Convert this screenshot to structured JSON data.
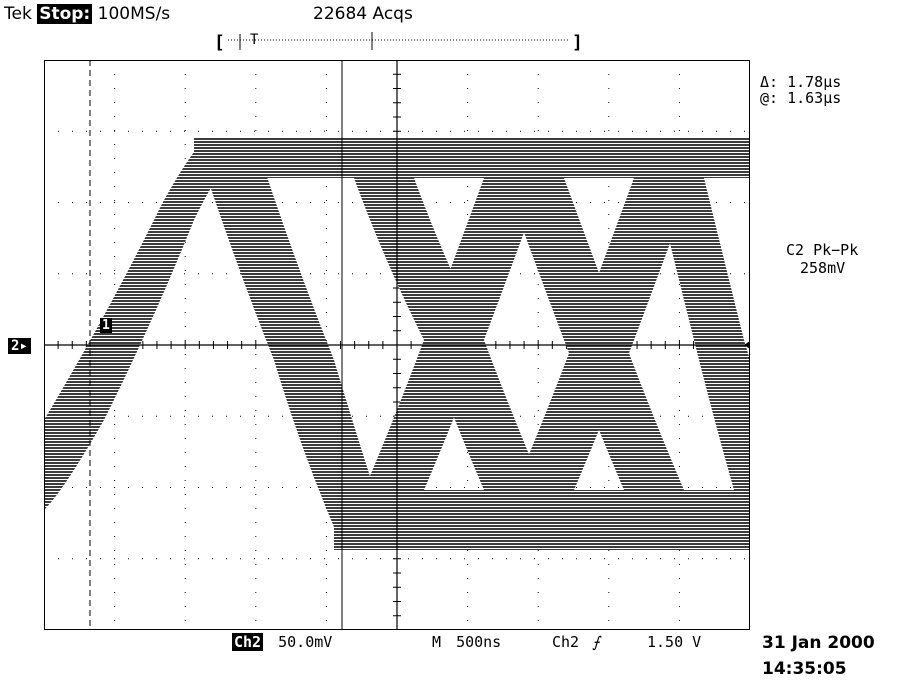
{
  "header": {
    "brand": "Tek",
    "run_state": "Stop:",
    "sample_rate": "100MS/s",
    "acquisitions": "22684 Acqs",
    "trigger_marker": "T"
  },
  "readouts": {
    "delta": "Δ: 1.78μs",
    "at": "@: 1.63μs",
    "measurement_label": "C2 Pk−Pk",
    "measurement_value": "258mV"
  },
  "markers": {
    "channel_ground": "2",
    "cursor_1": "1"
  },
  "footer": {
    "channel": "Ch2",
    "volts_per_div": "50.0mV",
    "timebase_label": "M",
    "timebase": "500ns",
    "trigger_channel": "Ch2",
    "trigger_slope": "⨍",
    "trigger_level": "1.50 V",
    "date": "31 Jan 2000",
    "time": "14:35:05"
  }
}
